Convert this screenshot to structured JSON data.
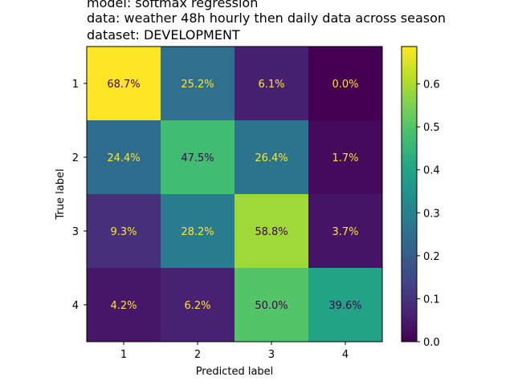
{
  "chart_data": {
    "type": "heatmap",
    "title_lines": [
      "model:   softmax regression",
      "data:      weather 48h hourly then daily data across season",
      "dataset: DEVELOPMENT"
    ],
    "xlabel": "Predicted label",
    "ylabel": "True label",
    "x_categories": [
      "1",
      "2",
      "3",
      "4"
    ],
    "y_categories": [
      "1",
      "2",
      "3",
      "4"
    ],
    "values": [
      [
        0.687,
        0.252,
        0.061,
        0.0
      ],
      [
        0.244,
        0.475,
        0.264,
        0.017
      ],
      [
        0.093,
        0.282,
        0.588,
        0.037
      ],
      [
        0.042,
        0.062,
        0.5,
        0.396
      ]
    ],
    "cell_labels": [
      [
        "68.7%",
        "25.2%",
        "6.1%",
        "0.0%"
      ],
      [
        "24.4%",
        "47.5%",
        "26.4%",
        "1.7%"
      ],
      [
        "9.3%",
        "28.2%",
        "58.8%",
        "3.7%"
      ],
      [
        "4.2%",
        "6.2%",
        "50.0%",
        "39.6%"
      ]
    ],
    "colormap": "viridis",
    "colorbar": {
      "vmin": 0.0,
      "vmax": 0.687,
      "ticks": [
        0.0,
        0.1,
        0.2,
        0.3,
        0.4,
        0.5,
        0.6
      ],
      "tick_labels": [
        "0.0",
        "0.1",
        "0.2",
        "0.3",
        "0.4",
        "0.5",
        "0.6"
      ]
    },
    "text_colors": {
      "on_dark": "#fde725",
      "on_light": "#440154"
    }
  }
}
